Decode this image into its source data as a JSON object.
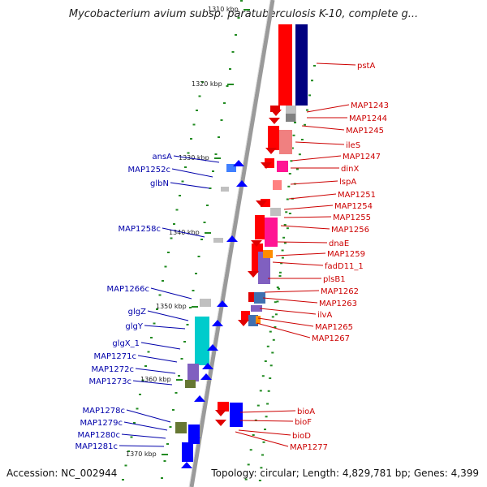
{
  "title": "Mycobacterium avium subsp. paratuberculosis K-10, complete g...",
  "footer": {
    "accession": "Accession: NC_002944",
    "summary": "Topology: circular; Length: 4,829,781 bp; Genes: 4,399"
  },
  "colors": {
    "forward_gene": "#e00000",
    "reverse_gene": "#0000e0",
    "forward_label": "#cc0000",
    "reverse_label": "#0000aa",
    "backbone": "#9a9a9a",
    "tick": "#228b22"
  },
  "scale_labels": [
    "1310 kbp",
    "1320 kbp",
    "1330 kbp",
    "1340 kbp",
    "1350 kbp",
    "1360 kbp",
    "1370 kbp"
  ],
  "forward_genes": [
    "pstA",
    "MAP1243",
    "MAP1244",
    "MAP1245",
    "ileS",
    "MAP1247",
    "dinX",
    "lspA",
    "MAP1251",
    "MAP1254",
    "MAP1255",
    "MAP1256",
    "dnaE",
    "MAP1259",
    "fadD11_1",
    "plsB1",
    "MAP1262",
    "MAP1263",
    "ilvA",
    "MAP1265",
    "MAP1267",
    "bioA",
    "bioF",
    "bioD",
    "MAP1277"
  ],
  "reverse_genes": [
    "ansA",
    "MAP1252c",
    "glbN",
    "MAP1258c",
    "MAP1266c",
    "glgZ",
    "glgY",
    "glgX_1",
    "MAP1271c",
    "MAP1272c",
    "MAP1273c",
    "MAP1278c",
    "MAP1279c",
    "MAP1280c",
    "MAP1281c"
  ]
}
